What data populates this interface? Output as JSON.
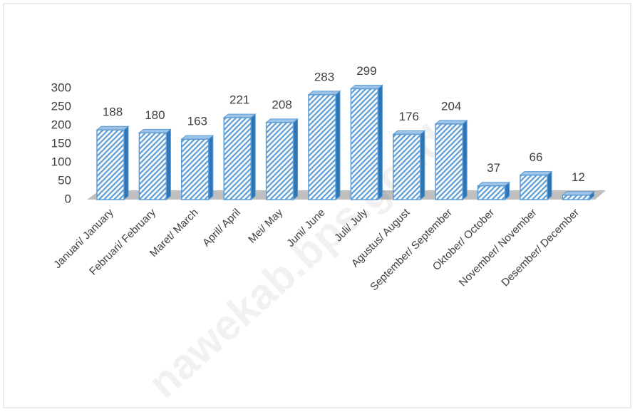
{
  "chart_data": {
    "type": "bar",
    "categories": [
      "Januari/ January",
      "Februari/ February",
      "Maret/ March",
      "April/ April",
      "Mei/ May",
      "Juni/ June",
      "Juli/ July",
      "Agustus/ August",
      "September/ September",
      "Oktober/ October",
      "November/ November",
      "Desember/ December"
    ],
    "values": [
      188,
      180,
      163,
      221,
      208,
      283,
      299,
      176,
      204,
      37,
      66,
      12
    ],
    "color": "#5b9bd5",
    "ylim": [
      0,
      300
    ],
    "yticks": [
      0,
      50,
      100,
      150,
      200,
      250,
      300
    ],
    "watermark": "nawekab.bps.go.id"
  }
}
